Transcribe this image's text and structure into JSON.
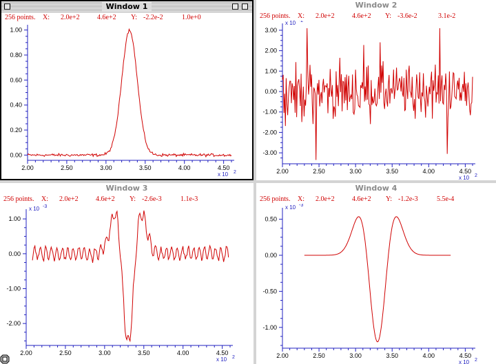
{
  "windows": [
    {
      "title": "Window 1",
      "active": true,
      "info": {
        "points": "256 points.",
        "x_label": "X:",
        "x1": "2.0e+2",
        "x2": "4.6e+2",
        "y_label": "Y:",
        "y1": "-2.2e-2",
        "y2": "1.0e+0"
      },
      "x_exponent_label": "x 10",
      "x_exponent": "2",
      "y_exponent_label": "",
      "y_exponent": "",
      "xticks": [
        "2.00",
        "2.50",
        "3.00",
        "3.50",
        "4.00",
        "4.50"
      ],
      "yticks": [
        "0.00",
        "0.20",
        "0.40",
        "0.60",
        "0.80",
        "1.00"
      ],
      "color": "#d00000"
    },
    {
      "title": "Window 2",
      "active": false,
      "info": {
        "points": "256 points.",
        "x_label": "X:",
        "x1": "2.0e+2",
        "x2": "4.6e+2",
        "y_label": "Y:",
        "y1": "-3.6e-2",
        "y2": "3.1e-2"
      },
      "x_exponent_label": "x 10",
      "x_exponent": "2",
      "y_exponent_label": "x 10",
      "y_exponent": "-2",
      "xticks": [
        "2.00",
        "2.50",
        "3.00",
        "3.50",
        "4.00",
        "4.50"
      ],
      "yticks": [
        "-3.00",
        "-2.00",
        "-1.00",
        "0.00",
        "1.00",
        "2.00",
        "3.00"
      ],
      "color": "#d00000"
    },
    {
      "title": "Window 3",
      "active": false,
      "info": {
        "points": "256 points.",
        "x_label": "X:",
        "x1": "2.0e+2",
        "x2": "4.6e+2",
        "y_label": "Y:",
        "y1": "-2.6e-3",
        "y2": "1.1e-3"
      },
      "x_exponent_label": "x 10",
      "x_exponent": "2",
      "y_exponent_label": "x 10",
      "y_exponent": "-3",
      "xticks": [
        "2.00",
        "2.50",
        "3.00",
        "3.50",
        "4.00",
        "4.50"
      ],
      "yticks": [
        "-2.00",
        "-1.00",
        "0.00",
        "1.00"
      ],
      "color": "#d00000"
    },
    {
      "title": "Window 4",
      "active": false,
      "info": {
        "points": "256 points.",
        "x_label": "X:",
        "x1": "2.0e+2",
        "x2": "4.6e+2",
        "y_label": "Y:",
        "y1": "-1.2e-3",
        "y2": "5.5e-4"
      },
      "x_exponent_label": "x 10",
      "x_exponent": "2",
      "y_exponent_label": "x 10",
      "y_exponent": "-3",
      "xticks": [
        "2.00",
        "2.50",
        "3.00",
        "3.50",
        "4.00",
        "4.50"
      ],
      "yticks": [
        "-1.00",
        "-0.50",
        "0.00",
        "0.50"
      ],
      "color": "#d00000"
    }
  ],
  "chart_data": [
    {
      "type": "line",
      "series_of": "Window 1",
      "shape": "gaussian peak",
      "x": [
        200,
        460
      ],
      "ylim": [
        0,
        1.0
      ],
      "peak_x": 330,
      "peak_y": 1.0,
      "noise": 0.01
    },
    {
      "type": "line",
      "series_of": "Window 2",
      "shape": "noise",
      "x": [
        200,
        460
      ],
      "ylim": [
        -3.6,
        3.1
      ],
      "unit_exp": -2
    },
    {
      "type": "line",
      "series_of": "Window 3",
      "shape": "second derivative with noise",
      "x": [
        200,
        460
      ],
      "ylim": [
        -2.6,
        1.1
      ],
      "unit_exp": -3
    },
    {
      "type": "line",
      "series_of": "Window 4",
      "shape": "smooth second derivative",
      "x": [
        230,
        430
      ],
      "ylim": [
        -1.2,
        0.55
      ],
      "unit_exp": -3
    }
  ]
}
